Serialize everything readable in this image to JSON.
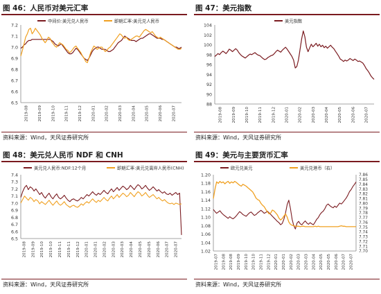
{
  "colors": {
    "dark_red": "#7a1a1f",
    "orange": "#f0a020",
    "axis": "#888888",
    "accent_rule": "#7a1a1f"
  },
  "panels": [
    {
      "title": "图 46：人民币对美元汇率",
      "source": "资料来源：Wind，天风证券研究所",
      "chart_data": {
        "type": "line",
        "ylim": [
          6.5,
          7.2
        ],
        "y_ticks": [
          "6.5",
          "6.6",
          "6.7",
          "6.8",
          "6.9",
          "7.0",
          "7.1",
          "7.2"
        ],
        "x_tick_labels": [
          "2019-08",
          "2019-09",
          "2019-10",
          "2019-11",
          "2019-12",
          "2020-01",
          "2020-02",
          "2020-03",
          "2020-04",
          "2020-05",
          "2020-06",
          "2020-07"
        ],
        "series": [
          {
            "name": "中间价:美元兑人民币",
            "color": "#7a1a1f",
            "width": 1.2,
            "values": [
              6.99,
              7.0,
              7.02,
              7.03,
              7.05,
              7.06,
              7.06,
              7.07,
              7.07,
              7.07,
              7.07,
              7.07,
              7.07,
              7.07,
              7.07,
              7.07,
              7.07,
              7.07,
              7.07,
              7.06,
              7.05,
              7.03,
              7.02,
              7.01,
              7.02,
              7.03,
              7.01,
              6.99,
              6.97,
              6.95,
              6.94,
              6.94,
              6.95,
              6.97,
              6.99,
              6.98,
              6.96,
              6.94,
              6.92,
              6.9,
              6.89,
              6.88,
              6.9,
              6.93,
              6.96,
              6.98,
              6.99,
              7.0,
              7.0,
              6.99,
              6.98,
              6.98,
              6.98,
              6.97,
              6.96,
              6.96,
              6.97,
              6.98,
              7.0,
              7.02,
              7.04,
              7.05,
              7.06,
              7.08,
              7.1,
              7.09,
              7.08,
              7.07,
              7.06,
              7.06,
              7.06,
              7.05,
              7.06,
              7.07,
              7.08,
              7.08,
              7.09,
              7.1,
              7.11,
              7.12,
              7.12,
              7.11,
              7.1,
              7.09,
              7.08,
              7.08,
              7.08,
              7.07,
              7.07,
              7.06,
              7.05,
              7.04,
              7.03,
              7.02,
              7.01,
              7.0,
              7.0,
              6.99,
              6.99,
              7.0
            ]
          },
          {
            "name": "即期汇率:美元兑人民币",
            "color": "#f0a020",
            "width": 1.2,
            "values": [
              6.92,
              6.97,
              7.03,
              7.09,
              7.12,
              7.16,
              7.17,
              7.12,
              7.14,
              7.17,
              7.15,
              7.13,
              7.11,
              7.08,
              7.06,
              7.04,
              7.06,
              7.09,
              7.08,
              7.05,
              7.03,
              7.01,
              7.0,
              7.02,
              7.04,
              7.03,
              7.02,
              7.0,
              6.98,
              6.97,
              6.95,
              6.96,
              6.98,
              7.0,
              7.01,
              6.99,
              6.97,
              6.95,
              6.92,
              6.9,
              6.87,
              6.86,
              6.9,
              6.95,
              6.98,
              7.01,
              7.0,
              6.98,
              6.99,
              7.0,
              7.0,
              6.98,
              6.96,
              6.97,
              6.99,
              7.0,
              7.02,
              7.04,
              7.06,
              7.08,
              7.1,
              7.12,
              7.11,
              7.09,
              7.08,
              7.09,
              7.07,
              7.06,
              7.07,
              7.08,
              7.09,
              7.1,
              7.1,
              7.09,
              7.11,
              7.13,
              7.15,
              7.16,
              7.15,
              7.14,
              7.13,
              7.14,
              7.12,
              7.1,
              7.09,
              7.08,
              7.09,
              7.08,
              7.07,
              7.06,
              7.05,
              7.04,
              7.03,
              7.02,
              7.01,
              7.0,
              6.99,
              6.98,
              6.98,
              6.99
            ]
          }
        ]
      }
    },
    {
      "title": "图 47：美元指数",
      "source": "资料来源：Wind，天风证券研究所",
      "chart_data": {
        "type": "line",
        "ylim": [
          88,
          104
        ],
        "y_ticks": [
          "88",
          "90",
          "92",
          "94",
          "96",
          "98",
          "100",
          "102",
          "104"
        ],
        "x_tick_labels": [
          "2019-08",
          "2019-09",
          "2019-10",
          "2019-11",
          "2019-12",
          "2020-01",
          "2020-02",
          "2020-03",
          "2020-04",
          "2020-05",
          "2020-06",
          "2020-07"
        ],
        "series": [
          {
            "name": "美元指数",
            "color": "#7a1a1f",
            "width": 1.2,
            "values": [
              97.6,
              97.9,
              98.2,
              98.0,
              98.4,
              98.7,
              98.5,
              98.2,
              98.6,
              99.1,
              98.9,
              98.6,
              98.9,
              99.2,
              98.9,
              98.4,
              98.0,
              97.7,
              97.5,
              97.3,
              97.6,
              97.9,
              98.1,
              98.0,
              98.2,
              98.4,
              98.1,
              97.9,
              97.8,
              97.5,
              97.2,
              97.0,
              97.1,
              97.4,
              97.6,
              97.8,
              97.9,
              98.2,
              98.6,
              98.9,
              98.7,
              98.5,
              98.9,
              99.2,
              99.5,
              99.1,
              98.6,
              98.1,
              97.6,
              96.9,
              95.3,
              95.6,
              96.9,
              99.0,
              101.2,
              102.8,
              101.6,
              99.5,
              98.6,
              99.4,
              100.1,
              99.6,
              99.9,
              100.3,
              99.7,
              100.1,
              99.6,
              99.9,
              99.4,
              99.7,
              99.3,
              99.6,
              99.9,
              99.5,
              99.2,
              98.7,
              98.2,
              97.7,
              97.1,
              96.9,
              96.6,
              96.9,
              96.7,
              96.9,
              97.2,
              97.0,
              96.8,
              97.1,
              96.9,
              96.6,
              96.7,
              96.5,
              96.3,
              95.8,
              95.2,
              94.8,
              94.3,
              93.7,
              93.3,
              93.0
            ]
          }
        ]
      }
    },
    {
      "title": "图 48：美元兑人民币 NDF 和 CNH",
      "source": "资料来源：Wind，天风证券研究所",
      "chart_data": {
        "type": "line",
        "ylim": [
          6.5,
          7.4
        ],
        "y_ticks": [
          "6.5",
          "6.6",
          "6.7",
          "6.8",
          "6.9",
          "7.0",
          "7.1",
          "7.2",
          "7.3",
          "7.4"
        ],
        "x_tick_labels": [
          "2019-08",
          "2019-09",
          "2019-10",
          "2019-10",
          "2019-11",
          "2019-11",
          "2019-12",
          "2020-01",
          "2020-01",
          "2020-02",
          "2020-03",
          "2020-03",
          "2020-04",
          "2020-05",
          "2020-05",
          "2020-06",
          "2020-07",
          "2020-07"
        ],
        "series": [
          {
            "name": "美元兑人民币:NDF:12个月",
            "color": "#7a1a1f",
            "width": 1.1,
            "values": [
              7.08,
              7.16,
              7.22,
              7.25,
              7.19,
              7.23,
              7.21,
              7.17,
              7.2,
              7.16,
              7.12,
              7.15,
              7.1,
              7.07,
              7.11,
              7.14,
              7.09,
              7.06,
              7.1,
              7.13,
              7.08,
              7.06,
              7.08,
              7.11,
              7.07,
              7.04,
              7.02,
              7.05,
              7.06,
              7.04,
              7.03,
              7.05,
              7.08,
              7.06,
              7.09,
              7.12,
              7.1,
              7.13,
              7.16,
              7.13,
              7.11,
              7.14,
              7.12,
              7.15,
              7.18,
              7.15,
              7.13,
              7.17,
              7.2,
              7.16,
              7.19,
              7.22,
              7.18,
              7.21,
              7.24,
              7.22,
              7.19,
              7.21,
              7.25,
              7.22,
              7.19,
              7.23,
              7.26,
              7.24,
              7.2,
              7.22,
              7.25,
              7.21,
              7.18,
              7.2,
              7.23,
              7.2,
              7.17,
              7.19,
              7.16,
              7.14,
              7.16,
              7.13,
              7.12,
              7.14,
              7.11,
              7.13,
              7.15,
              7.12,
              7.14,
              6.55
            ]
          },
          {
            "name": "即期汇率:美元兑离岸人民币(CNH)",
            "color": "#f0a020",
            "width": 1.1,
            "values": [
              7.0,
              7.05,
              7.1,
              7.07,
              7.04,
              7.08,
              7.06,
              7.02,
              7.05,
              7.03,
              6.99,
              7.02,
              7.0,
              6.98,
              7.01,
              7.04,
              7.0,
              6.97,
              7.0,
              7.03,
              6.99,
              6.97,
              6.99,
              7.02,
              6.98,
              6.96,
              6.94,
              6.96,
              6.97,
              6.95,
              6.94,
              6.96,
              6.99,
              6.97,
              7.0,
              7.02,
              7.0,
              7.03,
              7.06,
              7.03,
              7.01,
              7.04,
              7.02,
              7.05,
              7.08,
              7.05,
              7.03,
              7.07,
              7.1,
              7.06,
              7.09,
              7.12,
              7.08,
              7.11,
              7.14,
              7.12,
              7.09,
              7.11,
              7.15,
              7.12,
              7.09,
              7.13,
              7.16,
              7.14,
              7.1,
              7.12,
              7.15,
              7.11,
              7.08,
              7.1,
              7.12,
              7.09,
              7.06,
              7.08,
              7.05,
              7.03,
              7.05,
              7.02,
              7.0,
              6.99,
              7.0,
              6.98,
              7.0,
              6.99,
              6.98,
              6.99
            ]
          }
        ]
      }
    },
    {
      "title": "图 49：美元与主要货币汇率",
      "source": "资料来源：Wind，天风证券研究所",
      "chart_data": {
        "type": "line",
        "ylim": [
          1.02,
          1.2
        ],
        "y_ticks": [
          "1.02",
          "1.04",
          "1.06",
          "1.08",
          "1.10",
          "1.12",
          "1.14",
          "1.16",
          "1.18",
          "1.20"
        ],
        "y2lim": [
          7.7,
          7.86
        ],
        "y2_ticks": [
          "7.70",
          "7.71",
          "7.72",
          "7.73",
          "7.74",
          "7.75",
          "7.76",
          "7.77",
          "7.78",
          "7.79",
          "7.80",
          "7.81",
          "7.82",
          "7.83",
          "7.84",
          "7.85",
          "7.86"
        ],
        "x_tick_labels": [
          "2019-07",
          "2019-08",
          "2019-08",
          "2019-09",
          "2019-10",
          "2019-10",
          "2019-11",
          "2019-12",
          "2020-01",
          "2020-01",
          "2020-02",
          "2020-03",
          "2020-03",
          "2020-04",
          "2020-05",
          "2020-05",
          "2020-06",
          "2020-07",
          "2020-07"
        ],
        "series": [
          {
            "name": "欧元兑美元",
            "color": "#7a1a1f",
            "width": 1.1,
            "axis": "left",
            "values": [
              1.118,
              1.113,
              1.109,
              1.112,
              1.115,
              1.11,
              1.106,
              1.103,
              1.1,
              1.097,
              1.101,
              1.098,
              1.096,
              1.099,
              1.103,
              1.108,
              1.113,
              1.11,
              1.106,
              1.104,
              1.102,
              1.106,
              1.11,
              1.112,
              1.108,
              1.104,
              1.106,
              1.11,
              1.113,
              1.116,
              1.113,
              1.109,
              1.111,
              1.114,
              1.11,
              1.106,
              1.102,
              1.098,
              1.094,
              1.09,
              1.087,
              1.082,
              1.085,
              1.095,
              1.11,
              1.13,
              1.14,
              1.12,
              1.095,
              1.08,
              1.072,
              1.086,
              1.09,
              1.084,
              1.082,
              1.087,
              1.091,
              1.086,
              1.083,
              1.087,
              1.084,
              1.082,
              1.088,
              1.095,
              1.099,
              1.106,
              1.111,
              1.114,
              1.12,
              1.128,
              1.131,
              1.127,
              1.124,
              1.122,
              1.126,
              1.123,
              1.128,
              1.133,
              1.131,
              1.135,
              1.14,
              1.145,
              1.152,
              1.16,
              1.165,
              1.172,
              1.177,
              1.183
            ]
          },
          {
            "name": "美元兑港币（右）",
            "color": "#f0a020",
            "width": 1.3,
            "axis": "right",
            "values": [
              7.81,
              7.83,
              7.845,
              7.842,
              7.846,
              7.843,
              7.845,
              7.841,
              7.844,
              7.846,
              7.842,
              7.845,
              7.843,
              7.846,
              7.844,
              7.841,
              7.838,
              7.836,
              7.84,
              7.838,
              7.836,
              7.833,
              7.83,
              7.827,
              7.824,
              7.818,
              7.811,
              7.808,
              7.806,
              7.8,
              7.796,
              7.793,
              7.787,
              7.782,
              7.778,
              7.78,
              7.786,
              7.784,
              7.78,
              7.776,
              7.769,
              7.765,
              7.768,
              7.773,
              7.778,
              7.771,
              7.761,
              7.756,
              7.754,
              7.753,
              7.752,
              7.752,
              7.752,
              7.751,
              7.752,
              7.752,
              7.751,
              7.751,
              7.751,
              7.751,
              7.751,
              7.751,
              7.752,
              7.751,
              7.752,
              7.751,
              7.751,
              7.751,
              7.751,
              7.751,
              7.751,
              7.751,
              7.751,
              7.751,
              7.751,
              7.751,
              7.751,
              7.752,
              7.753,
              7.752,
              7.752,
              7.751,
              7.751,
              7.751,
              7.751,
              7.751,
              7.751,
              7.751
            ]
          }
        ]
      }
    }
  ]
}
